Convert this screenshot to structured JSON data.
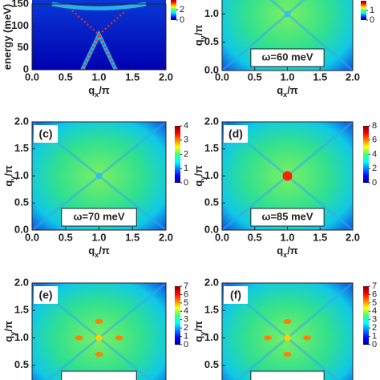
{
  "chart_data": [
    {
      "type": "heatmap",
      "ylabel": "energy (meV)",
      "xlabel": [
        "q",
        "x",
        "/π"
      ],
      "xlim": [
        0,
        2
      ],
      "ylim": [
        0,
        150
      ],
      "xticks": [
        {
          "value": 0,
          "label": "0.0"
        },
        {
          "value": 0.5,
          "label": "0.5"
        },
        {
          "value": 1,
          "label": "1.0"
        },
        {
          "value": 1.5,
          "label": "1.5"
        },
        {
          "value": 2,
          "label": "2.0"
        }
      ],
      "yticks": [
        0,
        50,
        100,
        150
      ],
      "clim": [
        0,
        4
      ],
      "cticks": [
        0,
        2
      ]
    },
    {
      "type": "heatmap",
      "annotation": "ω=60 meV",
      "ylabel": [
        "q",
        "y",
        "/π"
      ],
      "xlabel": [
        "q",
        "x",
        "/π"
      ],
      "xlim": [
        0,
        2
      ],
      "ylim": [
        0,
        2
      ],
      "xticks": [
        {
          "value": 0,
          "label": "0.0"
        },
        {
          "value": 0.5,
          "label": "0.5"
        },
        {
          "value": 1,
          "label": "1.0"
        },
        {
          "value": 1.5,
          "label": "1.5"
        },
        {
          "value": 2,
          "label": "2.0"
        }
      ],
      "yticks": [
        {
          "value": 0,
          "label": "0.0"
        },
        {
          "value": 0.5,
          "label": "0.5"
        },
        {
          "value": 1,
          "label": "1.0"
        }
      ],
      "clim": [
        0,
        2
      ],
      "cticks": [
        0,
        1
      ]
    },
    {
      "type": "heatmap",
      "label": "(c)",
      "annotation": "ω=70 meV",
      "ylabel": [
        "q",
        "y",
        "/π"
      ],
      "xlabel": [
        "q",
        "x",
        "/π"
      ],
      "xlim": [
        0,
        2
      ],
      "ylim": [
        0,
        2
      ],
      "xticks": [
        {
          "value": 0,
          "label": "0.0"
        },
        {
          "value": 0.5,
          "label": "0.5"
        },
        {
          "value": 1,
          "label": "1.0"
        },
        {
          "value": 1.5,
          "label": "1.5"
        },
        {
          "value": 2,
          "label": "2.0"
        }
      ],
      "yticks": [
        {
          "value": 0,
          "label": "0.0"
        },
        {
          "value": 0.5,
          "label": "0.5"
        },
        {
          "value": 1,
          "label": "1.0"
        },
        {
          "value": 1.5,
          "label": "1.5"
        },
        {
          "value": 2,
          "label": "2.0"
        }
      ],
      "clim": [
        0,
        4
      ],
      "cticks": [
        0,
        1,
        2,
        3,
        4
      ]
    },
    {
      "type": "heatmap",
      "label": "(d)",
      "annotation": "ω=85 meV",
      "ylabel": [
        "q",
        "y",
        "/π"
      ],
      "xlabel": [
        "q",
        "x",
        "/π"
      ],
      "xlim": [
        0,
        2
      ],
      "ylim": [
        0,
        2
      ],
      "xticks": [
        {
          "value": 0,
          "label": "0.0"
        },
        {
          "value": 0.5,
          "label": "0.5"
        },
        {
          "value": 1,
          "label": "1.0"
        },
        {
          "value": 1.5,
          "label": "1.5"
        },
        {
          "value": 2,
          "label": "2.0"
        }
      ],
      "yticks": [
        {
          "value": 0,
          "label": "0.0"
        },
        {
          "value": 0.5,
          "label": "0.5"
        },
        {
          "value": 1,
          "label": "1.0"
        },
        {
          "value": 1.5,
          "label": "1.5"
        },
        {
          "value": 2,
          "label": "2.0"
        }
      ],
      "clim": [
        0,
        8
      ],
      "cticks": [
        0,
        2,
        4,
        6,
        8
      ]
    },
    {
      "type": "heatmap",
      "label": "(e)",
      "ylabel": [
        "q",
        "y",
        "/π"
      ],
      "xlim": [
        0,
        2
      ],
      "ylim": [
        0,
        2
      ],
      "yticks": [
        {
          "value": 0.5,
          "label": "0.5"
        },
        {
          "value": 1,
          "label": "1.0"
        },
        {
          "value": 1.5,
          "label": "1.5"
        },
        {
          "value": 2,
          "label": "2.0"
        }
      ],
      "clim": [
        0,
        7
      ],
      "cticks": [
        0,
        1,
        2,
        3,
        4,
        5,
        6,
        7
      ]
    },
    {
      "type": "heatmap",
      "label": "(f)",
      "ylabel": [
        "q",
        "y",
        "/π"
      ],
      "xlim": [
        0,
        2
      ],
      "ylim": [
        0,
        2
      ],
      "yticks": [
        {
          "value": 0.5,
          "label": "0.5"
        },
        {
          "value": 1,
          "label": "1.0"
        },
        {
          "value": 1.5,
          "label": "1.5"
        },
        {
          "value": 2,
          "label": "2.0"
        }
      ],
      "clim": [
        0,
        7
      ],
      "cticks": [
        0,
        1,
        2,
        3,
        4,
        5,
        6,
        7
      ]
    }
  ]
}
